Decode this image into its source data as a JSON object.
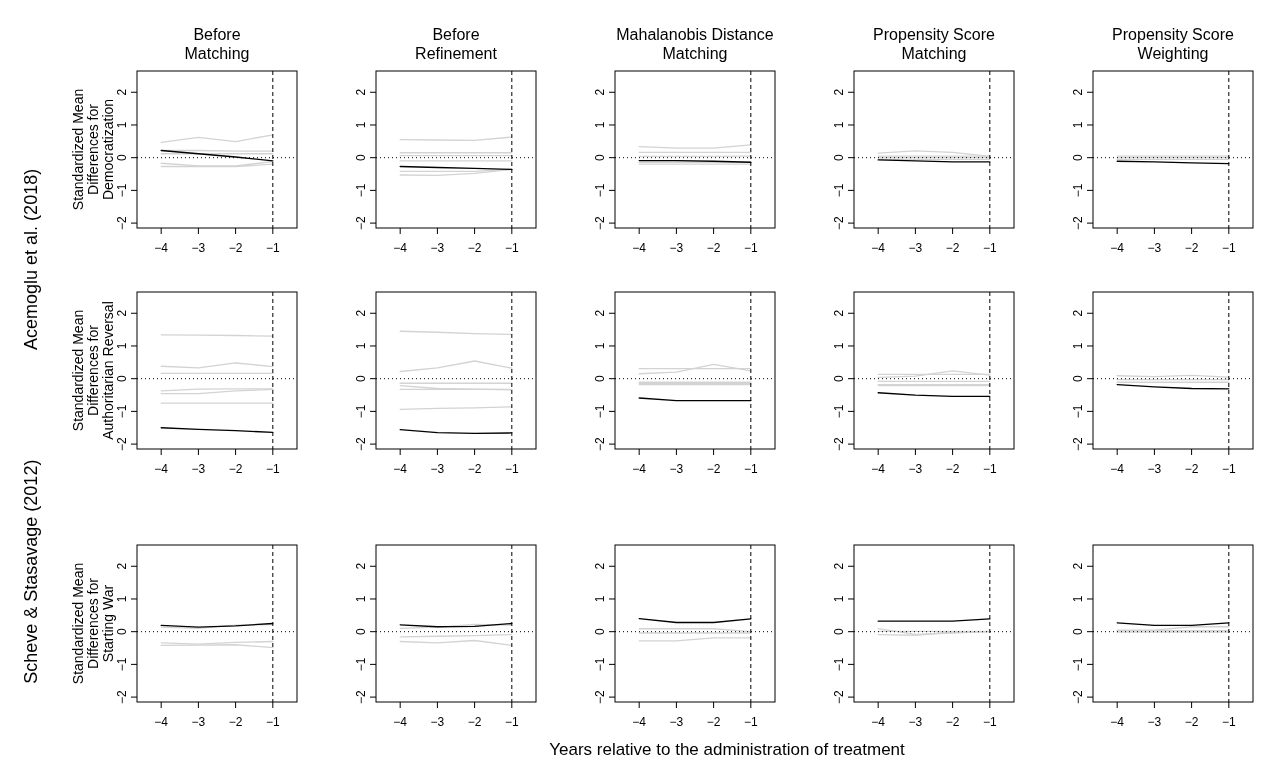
{
  "chart_data": [
    {
      "type": "line",
      "title": "Before\nMatching",
      "ylabel": "Standardized Mean\nDifferences for\nDemocratization",
      "annotations": [
        "Acemoglu et al. (2018)"
      ],
      "x": [
        -4,
        -3,
        -2,
        -1
      ],
      "xlim": [
        -4.65,
        -0.35
      ],
      "ylim": [
        -2.15,
        2.65
      ],
      "xticks": [
        -4,
        -3,
        -2,
        -1
      ],
      "yticks": [
        -2,
        -1,
        0,
        1,
        2
      ],
      "ref_lines": [
        {
          "axis": "y",
          "value": 0,
          "line_style": "dotted",
          "color": "#000000"
        },
        {
          "axis": "x",
          "value": -1,
          "line_style": "dashed",
          "color": "#000000"
        }
      ],
      "series": [
        {
          "color": "#d3d3d3",
          "values": [
            0.47,
            0.62,
            0.49,
            0.7
          ]
        },
        {
          "color": "#d3d3d3",
          "values": [
            0.22,
            0.22,
            0.2,
            0.2
          ]
        },
        {
          "color": "#d3d3d3",
          "values": [
            0.12,
            0.12,
            0.12,
            0.12
          ]
        },
        {
          "color": "#d3d3d3",
          "values": [
            -0.17,
            -0.25,
            -0.25,
            -0.12
          ]
        },
        {
          "color": "#d3d3d3",
          "values": [
            -0.27,
            -0.27,
            -0.27,
            -0.2
          ]
        },
        {
          "color": "#000000",
          "values": [
            0.22,
            0.12,
            0.02,
            -0.1
          ]
        }
      ]
    },
    {
      "type": "line",
      "title": "Before\nRefinement",
      "x": [
        -4,
        -3,
        -2,
        -1
      ],
      "xlim": [
        -4.65,
        -0.35
      ],
      "ylim": [
        -2.15,
        2.65
      ],
      "xticks": [
        -4,
        -3,
        -2,
        -1
      ],
      "yticks": [
        -2,
        -1,
        0,
        1,
        2
      ],
      "ref_lines": [
        {
          "axis": "y",
          "value": 0,
          "line_style": "dotted",
          "color": "#000000"
        },
        {
          "axis": "x",
          "value": -1,
          "line_style": "dashed",
          "color": "#000000"
        }
      ],
      "series": [
        {
          "color": "#d3d3d3",
          "values": [
            0.55,
            0.54,
            0.53,
            0.63
          ]
        },
        {
          "color": "#d3d3d3",
          "values": [
            0.15,
            0.15,
            0.15,
            0.15
          ]
        },
        {
          "color": "#d3d3d3",
          "values": [
            0.06,
            0.06,
            0.06,
            0.06
          ]
        },
        {
          "color": "#d3d3d3",
          "values": [
            -0.1,
            -0.1,
            -0.1,
            -0.1
          ]
        },
        {
          "color": "#d3d3d3",
          "values": [
            -0.42,
            -0.42,
            -0.42,
            -0.35
          ]
        },
        {
          "color": "#d3d3d3",
          "values": [
            -0.53,
            -0.54,
            -0.48,
            -0.36
          ]
        },
        {
          "color": "#000000",
          "values": [
            -0.27,
            -0.3,
            -0.33,
            -0.36
          ]
        }
      ]
    },
    {
      "type": "line",
      "title": "Mahalanobis Distance\nMatching",
      "x": [
        -4,
        -3,
        -2,
        -1
      ],
      "xlim": [
        -4.65,
        -0.35
      ],
      "ylim": [
        -2.15,
        2.65
      ],
      "xticks": [
        -4,
        -3,
        -2,
        -1
      ],
      "yticks": [
        -2,
        -1,
        0,
        1,
        2
      ],
      "ref_lines": [
        {
          "axis": "y",
          "value": 0,
          "line_style": "dotted",
          "color": "#000000"
        },
        {
          "axis": "x",
          "value": -1,
          "line_style": "dashed",
          "color": "#000000"
        }
      ],
      "series": [
        {
          "color": "#d3d3d3",
          "values": [
            0.34,
            0.29,
            0.29,
            0.39
          ]
        },
        {
          "color": "#d3d3d3",
          "values": [
            0.16,
            0.16,
            0.16,
            0.16
          ]
        },
        {
          "color": "#d3d3d3",
          "values": [
            0.04,
            0.04,
            0.04,
            0.05
          ]
        },
        {
          "color": "#d3d3d3",
          "values": [
            -0.14,
            -0.14,
            -0.14,
            -0.14
          ]
        },
        {
          "color": "#d3d3d3",
          "values": [
            -0.2,
            -0.2,
            -0.2,
            -0.2
          ]
        },
        {
          "color": "#000000",
          "values": [
            -0.09,
            -0.09,
            -0.11,
            -0.14
          ]
        }
      ]
    },
    {
      "type": "line",
      "title": "Propensity Score\nMatching",
      "x": [
        -4,
        -3,
        -2,
        -1
      ],
      "xlim": [
        -4.65,
        -0.35
      ],
      "ylim": [
        -2.15,
        2.65
      ],
      "xticks": [
        -4,
        -3,
        -2,
        -1
      ],
      "yticks": [
        -2,
        -1,
        0,
        1,
        2
      ],
      "ref_lines": [
        {
          "axis": "y",
          "value": 0,
          "line_style": "dotted",
          "color": "#000000"
        },
        {
          "axis": "x",
          "value": -1,
          "line_style": "dashed",
          "color": "#000000"
        }
      ],
      "series": [
        {
          "color": "#d3d3d3",
          "values": [
            0.14,
            0.21,
            0.16,
            0.04
          ]
        },
        {
          "color": "#d3d3d3",
          "values": [
            0.05,
            0.05,
            0.05,
            0.05
          ]
        },
        {
          "color": "#d3d3d3",
          "values": [
            0.0,
            0.0,
            0.0,
            0.0
          ]
        },
        {
          "color": "#d3d3d3",
          "values": [
            -0.05,
            -0.05,
            -0.05,
            -0.05
          ]
        },
        {
          "color": "#000000",
          "values": [
            -0.07,
            -0.1,
            -0.13,
            -0.13
          ]
        }
      ]
    },
    {
      "type": "line",
      "title": "Propensity Score\nWeighting",
      "x": [
        -4,
        -3,
        -2,
        -1
      ],
      "xlim": [
        -4.65,
        -0.35
      ],
      "ylim": [
        -2.15,
        2.65
      ],
      "xticks": [
        -4,
        -3,
        -2,
        -1
      ],
      "yticks": [
        -2,
        -1,
        0,
        1,
        2
      ],
      "ref_lines": [
        {
          "axis": "y",
          "value": 0,
          "line_style": "dotted",
          "color": "#000000"
        },
        {
          "axis": "x",
          "value": -1,
          "line_style": "dashed",
          "color": "#000000"
        }
      ],
      "series": [
        {
          "color": "#d3d3d3",
          "values": [
            0.05,
            0.05,
            0.05,
            0.05
          ]
        },
        {
          "color": "#d3d3d3",
          "values": [
            0.0,
            0.0,
            0.0,
            0.0
          ]
        },
        {
          "color": "#d3d3d3",
          "values": [
            -0.05,
            -0.05,
            -0.05,
            -0.05
          ]
        },
        {
          "color": "#000000",
          "values": [
            -0.11,
            -0.13,
            -0.16,
            -0.18
          ]
        }
      ]
    },
    {
      "type": "line",
      "ylabel": "Standardized Mean\nDifferences for\nAuthoritarian Reversal",
      "x": [
        -4,
        -3,
        -2,
        -1
      ],
      "xlim": [
        -4.65,
        -0.35
      ],
      "ylim": [
        -2.15,
        2.65
      ],
      "xticks": [
        -4,
        -3,
        -2,
        -1
      ],
      "yticks": [
        -2,
        -1,
        0,
        1,
        2
      ],
      "ref_lines": [
        {
          "axis": "y",
          "value": 0,
          "line_style": "dotted",
          "color": "#000000"
        },
        {
          "axis": "x",
          "value": -1,
          "line_style": "dashed",
          "color": "#000000"
        }
      ],
      "series": [
        {
          "color": "#d3d3d3",
          "values": [
            1.34,
            1.33,
            1.32,
            1.3
          ]
        },
        {
          "color": "#d3d3d3",
          "values": [
            0.38,
            0.33,
            0.48,
            0.37
          ]
        },
        {
          "color": "#d3d3d3",
          "values": [
            0.16,
            0.16,
            0.16,
            0.16
          ]
        },
        {
          "color": "#d3d3d3",
          "values": [
            -0.37,
            -0.32,
            -0.31,
            -0.31
          ]
        },
        {
          "color": "#d3d3d3",
          "values": [
            -0.46,
            -0.46,
            -0.37,
            -0.33
          ]
        },
        {
          "color": "#d3d3d3",
          "values": [
            -0.75,
            -0.75,
            -0.75,
            -0.75
          ]
        },
        {
          "color": "#000000",
          "values": [
            -1.5,
            -1.55,
            -1.59,
            -1.64
          ]
        }
      ]
    },
    {
      "type": "line",
      "x": [
        -4,
        -3,
        -2,
        -1
      ],
      "xlim": [
        -4.65,
        -0.35
      ],
      "ylim": [
        -2.15,
        2.65
      ],
      "xticks": [
        -4,
        -3,
        -2,
        -1
      ],
      "yticks": [
        -2,
        -1,
        0,
        1,
        2
      ],
      "ref_lines": [
        {
          "axis": "y",
          "value": 0,
          "line_style": "dotted",
          "color": "#000000"
        },
        {
          "axis": "x",
          "value": -1,
          "line_style": "dashed",
          "color": "#000000"
        }
      ],
      "series": [
        {
          "color": "#d3d3d3",
          "values": [
            1.45,
            1.42,
            1.38,
            1.35
          ]
        },
        {
          "color": "#d3d3d3",
          "values": [
            0.22,
            0.33,
            0.54,
            0.32
          ]
        },
        {
          "color": "#d3d3d3",
          "values": [
            -0.14,
            -0.14,
            -0.14,
            -0.14
          ]
        },
        {
          "color": "#d3d3d3",
          "values": [
            -0.21,
            -0.3,
            -0.32,
            -0.34
          ]
        },
        {
          "color": "#d3d3d3",
          "values": [
            -0.33,
            -0.33,
            -0.33,
            -0.33
          ]
        },
        {
          "color": "#d3d3d3",
          "values": [
            -0.94,
            -0.91,
            -0.89,
            -0.86
          ]
        },
        {
          "color": "#000000",
          "values": [
            -1.56,
            -1.65,
            -1.67,
            -1.66
          ]
        }
      ]
    },
    {
      "type": "line",
      "x": [
        -4,
        -3,
        -2,
        -1
      ],
      "xlim": [
        -4.65,
        -0.35
      ],
      "ylim": [
        -2.15,
        2.65
      ],
      "xticks": [
        -4,
        -3,
        -2,
        -1
      ],
      "yticks": [
        -2,
        -1,
        0,
        1,
        2
      ],
      "ref_lines": [
        {
          "axis": "y",
          "value": 0,
          "line_style": "dotted",
          "color": "#000000"
        },
        {
          "axis": "x",
          "value": -1,
          "line_style": "dashed",
          "color": "#000000"
        }
      ],
      "series": [
        {
          "color": "#d3d3d3",
          "values": [
            0.31,
            0.31,
            0.31,
            0.31
          ]
        },
        {
          "color": "#d3d3d3",
          "values": [
            0.15,
            0.2,
            0.44,
            0.24
          ]
        },
        {
          "color": "#d3d3d3",
          "values": [
            -0.11,
            -0.11,
            -0.11,
            -0.11
          ]
        },
        {
          "color": "#d3d3d3",
          "values": [
            -0.15,
            -0.15,
            -0.15,
            -0.15
          ]
        },
        {
          "color": "#d3d3d3",
          "values": [
            -0.18,
            -0.18,
            -0.18,
            -0.18
          ]
        },
        {
          "color": "#000000",
          "values": [
            -0.59,
            -0.67,
            -0.67,
            -0.67
          ]
        }
      ]
    },
    {
      "type": "line",
      "x": [
        -4,
        -3,
        -2,
        -1
      ],
      "xlim": [
        -4.65,
        -0.35
      ],
      "ylim": [
        -2.15,
        2.65
      ],
      "xticks": [
        -4,
        -3,
        -2,
        -1
      ],
      "yticks": [
        -2,
        -1,
        0,
        1,
        2
      ],
      "ref_lines": [
        {
          "axis": "y",
          "value": 0,
          "line_style": "dotted",
          "color": "#000000"
        },
        {
          "axis": "x",
          "value": -1,
          "line_style": "dashed",
          "color": "#000000"
        }
      ],
      "series": [
        {
          "color": "#d3d3d3",
          "values": [
            0.13,
            0.13,
            0.13,
            0.13
          ]
        },
        {
          "color": "#d3d3d3",
          "values": [
            0.04,
            0.08,
            0.24,
            0.11
          ]
        },
        {
          "color": "#d3d3d3",
          "values": [
            -0.08,
            -0.08,
            -0.08,
            -0.08
          ]
        },
        {
          "color": "#d3d3d3",
          "values": [
            -0.18,
            -0.18,
            -0.18,
            -0.18
          ]
        },
        {
          "color": "#d3d3d3",
          "values": [
            -0.21,
            -0.21,
            -0.21,
            -0.21
          ]
        },
        {
          "color": "#000000",
          "values": [
            -0.43,
            -0.5,
            -0.54,
            -0.54
          ]
        }
      ]
    },
    {
      "type": "line",
      "x": [
        -4,
        -3,
        -2,
        -1
      ],
      "xlim": [
        -4.65,
        -0.35
      ],
      "ylim": [
        -2.15,
        2.65
      ],
      "xticks": [
        -4,
        -3,
        -2,
        -1
      ],
      "yticks": [
        -2,
        -1,
        0,
        1,
        2
      ],
      "ref_lines": [
        {
          "axis": "y",
          "value": 0,
          "line_style": "dotted",
          "color": "#000000"
        },
        {
          "axis": "x",
          "value": -1,
          "line_style": "dashed",
          "color": "#000000"
        }
      ],
      "series": [
        {
          "color": "#d3d3d3",
          "values": [
            0.09,
            0.06,
            0.1,
            0.05
          ]
        },
        {
          "color": "#d3d3d3",
          "values": [
            -0.03,
            -0.03,
            -0.03,
            -0.03
          ]
        },
        {
          "color": "#d3d3d3",
          "values": [
            -0.11,
            -0.11,
            -0.11,
            -0.11
          ]
        },
        {
          "color": "#000000",
          "values": [
            -0.18,
            -0.25,
            -0.3,
            -0.31
          ]
        }
      ]
    },
    {
      "type": "line",
      "ylabel": "Standardized Mean\nDifferences for\nStarting War",
      "annotations": [
        "Scheve & Stasavage (2012)"
      ],
      "x": [
        -4,
        -3,
        -2,
        -1
      ],
      "xlim": [
        -4.65,
        -0.35
      ],
      "ylim": [
        -2.15,
        2.65
      ],
      "xticks": [
        -4,
        -3,
        -2,
        -1
      ],
      "yticks": [
        -2,
        -1,
        0,
        1,
        2
      ],
      "ref_lines": [
        {
          "axis": "y",
          "value": 0,
          "line_style": "dotted",
          "color": "#000000"
        },
        {
          "axis": "x",
          "value": -1,
          "line_style": "dashed",
          "color": "#000000"
        }
      ],
      "series": [
        {
          "color": "#d3d3d3",
          "values": [
            0.14,
            0.1,
            0.2,
            0.22
          ]
        },
        {
          "color": "#d3d3d3",
          "values": [
            -0.34,
            -0.38,
            -0.33,
            -0.3
          ]
        },
        {
          "color": "#d3d3d3",
          "values": [
            -0.42,
            -0.41,
            -0.4,
            -0.49
          ]
        },
        {
          "color": "#000000",
          "values": [
            0.19,
            0.14,
            0.18,
            0.25
          ]
        }
      ]
    },
    {
      "type": "line",
      "x": [
        -4,
        -3,
        -2,
        -1
      ],
      "xlim": [
        -4.65,
        -0.35
      ],
      "ylim": [
        -2.15,
        2.65
      ],
      "xticks": [
        -4,
        -3,
        -2,
        -1
      ],
      "yticks": [
        -2,
        -1,
        0,
        1,
        2
      ],
      "ref_lines": [
        {
          "axis": "y",
          "value": 0,
          "line_style": "dotted",
          "color": "#000000"
        },
        {
          "axis": "x",
          "value": -1,
          "line_style": "dashed",
          "color": "#000000"
        }
      ],
      "series": [
        {
          "color": "#d3d3d3",
          "values": [
            0.1,
            0.14,
            0.22,
            0.2
          ]
        },
        {
          "color": "#d3d3d3",
          "values": [
            -0.16,
            -0.14,
            -0.12,
            -0.09
          ]
        },
        {
          "color": "#d3d3d3",
          "values": [
            -0.3,
            -0.34,
            -0.27,
            -0.42
          ]
        },
        {
          "color": "#000000",
          "values": [
            0.21,
            0.15,
            0.16,
            0.25
          ]
        }
      ]
    },
    {
      "type": "line",
      "xlabel": "Years relative to the administration of treatment",
      "x": [
        -4,
        -3,
        -2,
        -1
      ],
      "xlim": [
        -4.65,
        -0.35
      ],
      "ylim": [
        -2.15,
        2.65
      ],
      "xticks": [
        -4,
        -3,
        -2,
        -1
      ],
      "yticks": [
        -2,
        -1,
        0,
        1,
        2
      ],
      "ref_lines": [
        {
          "axis": "y",
          "value": 0,
          "line_style": "dotted",
          "color": "#000000"
        },
        {
          "axis": "x",
          "value": -1,
          "line_style": "dashed",
          "color": "#000000"
        }
      ],
      "series": [
        {
          "color": "#d3d3d3",
          "values": [
            0.09,
            0.09,
            0.09,
            0.0
          ]
        },
        {
          "color": "#d3d3d3",
          "values": [
            -0.04,
            -0.04,
            -0.04,
            -0.04
          ]
        },
        {
          "color": "#d3d3d3",
          "values": [
            -0.28,
            -0.28,
            -0.19,
            -0.19
          ]
        },
        {
          "color": "#000000",
          "values": [
            0.4,
            0.28,
            0.28,
            0.39
          ]
        }
      ]
    },
    {
      "type": "line",
      "x": [
        -4,
        -3,
        -2,
        -1
      ],
      "xlim": [
        -4.65,
        -0.35
      ],
      "ylim": [
        -2.15,
        2.65
      ],
      "xticks": [
        -4,
        -3,
        -2,
        -1
      ],
      "yticks": [
        -2,
        -1,
        0,
        1,
        2
      ],
      "ref_lines": [
        {
          "axis": "y",
          "value": 0,
          "line_style": "dotted",
          "color": "#000000"
        },
        {
          "axis": "x",
          "value": -1,
          "line_style": "dashed",
          "color": "#000000"
        }
      ],
      "series": [
        {
          "color": "#d3d3d3",
          "values": [
            0.09,
            -0.08,
            -0.04,
            0.0
          ]
        },
        {
          "color": "#d3d3d3",
          "values": [
            -0.09,
            -0.11,
            -0.01,
            0.0
          ]
        },
        {
          "color": "#d3d3d3",
          "values": [
            0.01,
            0.01,
            0.01,
            0.01
          ]
        },
        {
          "color": "#000000",
          "values": [
            0.32,
            0.32,
            0.32,
            0.39
          ]
        }
      ]
    },
    {
      "type": "line",
      "x": [
        -4,
        -3,
        -2,
        -1
      ],
      "xlim": [
        -4.65,
        -0.35
      ],
      "ylim": [
        -2.15,
        2.65
      ],
      "xticks": [
        -4,
        -3,
        -2,
        -1
      ],
      "yticks": [
        -2,
        -1,
        0,
        1,
        2
      ],
      "ref_lines": [
        {
          "axis": "y",
          "value": 0,
          "line_style": "dotted",
          "color": "#000000"
        },
        {
          "axis": "x",
          "value": -1,
          "line_style": "dashed",
          "color": "#000000"
        }
      ],
      "series": [
        {
          "color": "#d3d3d3",
          "values": [
            0.05,
            0.05,
            0.15,
            0.15
          ]
        },
        {
          "color": "#d3d3d3",
          "values": [
            0.03,
            0.03,
            0.03,
            0.03
          ]
        },
        {
          "color": "#d3d3d3",
          "values": [
            -0.01,
            -0.01,
            -0.01,
            -0.01
          ]
        },
        {
          "color": "#000000",
          "values": [
            0.27,
            0.19,
            0.19,
            0.27
          ]
        }
      ]
    }
  ]
}
